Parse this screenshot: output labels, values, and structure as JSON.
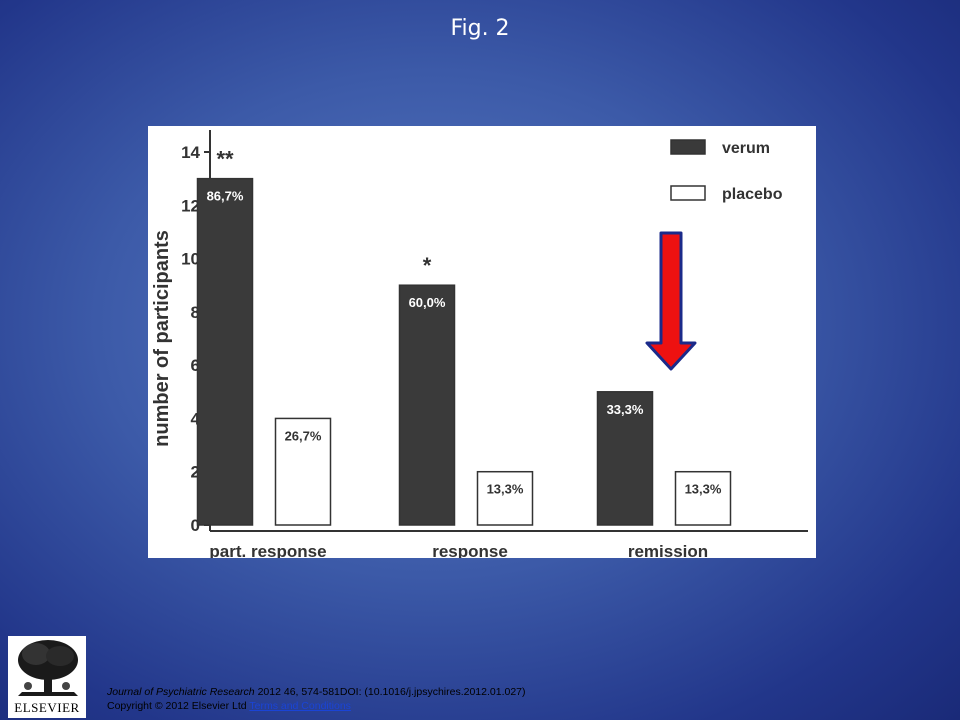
{
  "slide": {
    "title": "Fig. 2"
  },
  "chart_data": {
    "type": "bar",
    "categories": [
      "part. response",
      "response",
      "remission"
    ],
    "series": [
      {
        "name": "verum",
        "color": "#3a3a3a",
        "values": [
          13,
          9,
          5
        ],
        "labels": [
          "86,7%",
          "60,0%",
          "33,3%"
        ]
      },
      {
        "name": "placebo",
        "color": "#ffffff",
        "values": [
          4,
          2,
          2
        ],
        "labels": [
          "26,7%",
          "13,3%",
          "13,3%"
        ]
      }
    ],
    "significance": [
      "**",
      "*",
      ""
    ],
    "ylabel": "number of participants",
    "xlabel": "",
    "ylim": [
      0,
      14
    ],
    "yticks": [
      0,
      2,
      4,
      6,
      8,
      10,
      12,
      14
    ],
    "legend_position": "top-right",
    "annotation": {
      "type": "arrow",
      "direction": "down",
      "color": "#ee1111",
      "target": "remission"
    }
  },
  "footer": {
    "journal": "Journal of Psychiatric Research",
    "citation": " 2012 46, 574-581DOI: (10.1016/j.jpsychires.2012.01.027)",
    "copyright": "Copyright © 2012 Elsevier Ltd ",
    "link": "Terms and Conditions"
  },
  "logo": {
    "text": "ELSEVIER"
  }
}
